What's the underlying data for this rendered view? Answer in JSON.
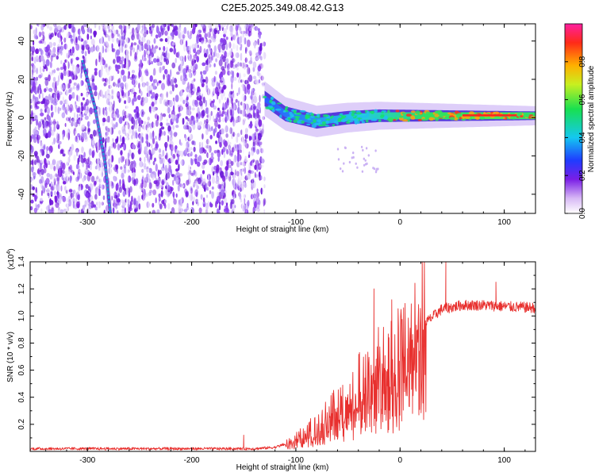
{
  "figure": {
    "title": "C2E5.2025.349.08.42.G13",
    "colors": {
      "trace": "#e8302e",
      "ridge": "#21a8d8",
      "background": "#ffffff",
      "axis": "#000000"
    }
  },
  "chart_data": [
    {
      "type": "heatmap",
      "name": "spectrogram",
      "xlabel": "Height of straight line (km)",
      "ylabel": "Frequency (Hz)",
      "xlim": [
        -355,
        130
      ],
      "ylim": [
        -50,
        49
      ],
      "xticks": [
        -300,
        -200,
        -100,
        0,
        100
      ],
      "yticks": [
        -40,
        -20,
        0,
        20,
        40
      ],
      "colorbar": {
        "label": "Normalized spectral amplitude",
        "ticks": [
          "0.0",
          "0.2",
          "0.4",
          "0.6",
          "0.8"
        ],
        "tick_values": [
          0,
          0.2,
          0.4,
          0.6,
          0.8
        ],
        "range": [
          0,
          1
        ]
      },
      "features": {
        "noise_region_x": [
          -355,
          -130
        ],
        "ridge_line": [
          [
            -305,
            30
          ],
          [
            -293,
            6
          ],
          [
            -283,
            -24
          ],
          [
            -278,
            -50
          ]
        ],
        "band_center": [
          [
            -130,
            10
          ],
          [
            -110,
            2
          ],
          [
            -80,
            -2
          ],
          [
            -50,
            0
          ],
          [
            -20,
            1
          ],
          [
            0,
            1
          ],
          [
            40,
            1
          ],
          [
            80,
            1
          ],
          [
            130,
            1
          ]
        ]
      }
    },
    {
      "type": "line",
      "name": "snr",
      "xlabel": "Height of straight line (km)",
      "ylabel": "SNR (10 * v/v)",
      "y_multiplier": "(x10",
      "y_multiplier_exp": "4",
      "y_multiplier_close": ")",
      "xlim": [
        -355,
        130
      ],
      "ylim": [
        0,
        1.4
      ],
      "xticks": [
        -300,
        -200,
        -100,
        0,
        100
      ],
      "yticks": [
        0.2,
        0.4,
        0.6,
        0.8,
        1.0,
        1.2,
        1.4
      ],
      "ytick_labels": [
        "0.2",
        "0.4",
        "0.6",
        "0.8",
        "1.0",
        "1.2",
        "1.4"
      ],
      "envelope": {
        "x": [
          -355,
          -300,
          -200,
          -160,
          -140,
          -120,
          -100,
          -80,
          -60,
          -40,
          -20,
          0,
          10,
          20,
          40,
          60,
          80,
          100,
          130
        ],
        "y": [
          0.02,
          0.02,
          0.02,
          0.02,
          0.02,
          0.03,
          0.08,
          0.18,
          0.3,
          0.45,
          0.58,
          0.68,
          0.78,
          0.92,
          1.05,
          1.08,
          1.08,
          1.07,
          1.06
        ]
      },
      "spikes": [
        {
          "x": -150,
          "y": 0.12
        },
        {
          "x": -25,
          "y": 1.2
        },
        {
          "x": -8,
          "y": 1.12
        },
        {
          "x": 12,
          "y": 0.28
        },
        {
          "x": 44,
          "y": 1.4
        },
        {
          "x": 92,
          "y": 1.25
        }
      ]
    }
  ]
}
